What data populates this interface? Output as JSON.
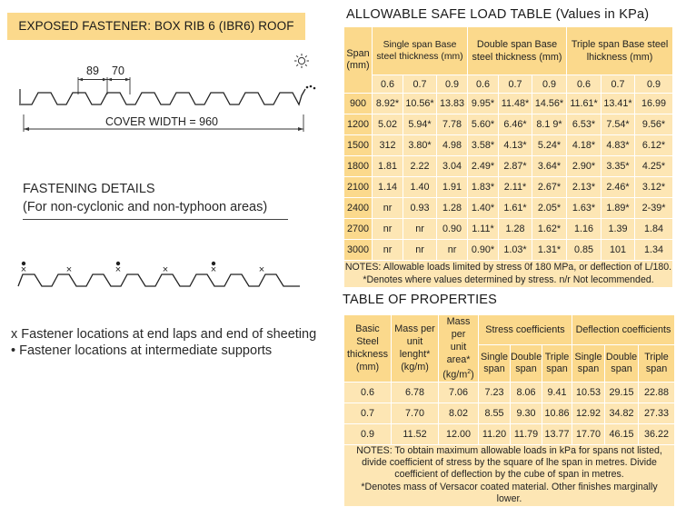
{
  "banner": "EXPOSED FASTENER: BOX RIB 6 (IBR6) ROOF",
  "profile": {
    "dim_a": "89",
    "dim_b": "70",
    "cover_width": "COVER WIDTH = 960"
  },
  "fastening": {
    "title": "FASTENING DETAILS",
    "subtitle": "(For non-cyclonic and non-typhoon areas)"
  },
  "legend": {
    "x_marker": "x",
    "x_text": "Fastener locations at end laps and end of sheeting",
    "dot_marker": "•",
    "dot_text": "Fastener locations at intermediate supports"
  },
  "load_table": {
    "title": "ALLOWABLE SAFE LOAD TABLE (Values in KPa)",
    "span_header": "Span (mm)",
    "groups": [
      {
        "label": "Single span Base steel thickness (mm)"
      },
      {
        "label": "Double span Base steel thickness (mm)"
      },
      {
        "label": "Triple span Base steel lhickness (mm)"
      }
    ],
    "thickness_headers": [
      "0.6",
      "0.7",
      "0.9",
      "0.6",
      "0.7",
      "0.9",
      "0.6",
      "0.7",
      "0.9"
    ],
    "rows": [
      {
        "span": "900",
        "values": [
          "8.92*",
          "10.56*",
          "13.83",
          "9.95*",
          "11.48*",
          "14.56*",
          "11.61*",
          "13.41*",
          "16.99"
        ]
      },
      {
        "span": "1200",
        "values": [
          "5.02",
          "5.94*",
          "7.78",
          "5.60*",
          "6.46*",
          "8.1 9*",
          "6.53*",
          "7.54*",
          "9.56*"
        ]
      },
      {
        "span": "1500",
        "values": [
          "312",
          "3.80*",
          "4.98",
          "3.58*",
          "4.13*",
          "5.24*",
          "4.18*",
          "4.83*",
          "6.12*"
        ]
      },
      {
        "span": "1800",
        "values": [
          "1.81",
          "2.22",
          "3.04",
          "2.49*",
          "2.87*",
          "3.64*",
          "2.90*",
          "3.35*",
          "4.25*"
        ]
      },
      {
        "span": "2100",
        "values": [
          "1.14",
          "1.40",
          "1.91",
          "1.83*",
          "2.11*",
          "2.67*",
          "2.13*",
          "2.46*",
          "3.12*"
        ]
      },
      {
        "span": "2400",
        "values": [
          "nr",
          "0.93",
          "1.28",
          "1.40*",
          "1.61*",
          "2.05*",
          "1.63*",
          "1.89*",
          "2-39*"
        ]
      },
      {
        "span": "2700",
        "values": [
          "nr",
          "nr",
          "0.90",
          "1.11*",
          "1.28",
          "1.62*",
          "1.16",
          "1.39",
          "1.84"
        ]
      },
      {
        "span": "3000",
        "values": [
          "nr",
          "nr",
          "nr",
          "0.90*",
          "1.03*",
          "1.31*",
          "0.85",
          "101",
          "1.34"
        ]
      }
    ],
    "notes": [
      "NOTES: Allowable loads limited by stress 0f 180 MPa, or deflection of L/180.",
      "*Denotes where values determined by stress. n/r Not lecommended."
    ]
  },
  "properties": {
    "title": "TABLE OF PROPERTIES",
    "headers": {
      "thickness": "Basic Steel thickness (mm)",
      "mass_length": "Mass per unit lenght* (kg/m)",
      "mass_area_line1": "Mass per",
      "mass_area_line2": "unit area*",
      "mass_area_unit": "(kg/m",
      "mass_area_sup": "2",
      "mass_area_close": ")",
      "stress": "Stress coefficients",
      "deflection": "Deflection coefficients",
      "sub": [
        "Single span",
        "Double span",
        "Triple span",
        "Single span",
        "Double span",
        "Triple span"
      ]
    },
    "rows": [
      {
        "values": [
          "0.6",
          "6.78",
          "7.06",
          "7.23",
          "8.06",
          "9.41",
          "10.53",
          "29.15",
          "22.88"
        ]
      },
      {
        "values": [
          "0.7",
          "7.70",
          "8.02",
          "8.55",
          "9.30",
          "10.86",
          "12.92",
          "34.82",
          "27.33"
        ]
      },
      {
        "values": [
          "0.9",
          "11.52",
          "12.00",
          "11.20",
          "11.79",
          "13.77",
          "17.70",
          "46.15",
          "36.22"
        ]
      }
    ],
    "notes": [
      "NOTES: To obtain maximum allowable loads in kPa for spans not listed, divide coefficient of stress by the square of lhe span in metres. Divide coefficient of deflection by the cube of span in metres.",
      "*Denotes mass of Versacor coated material. Other finishes marginally lower."
    ]
  }
}
